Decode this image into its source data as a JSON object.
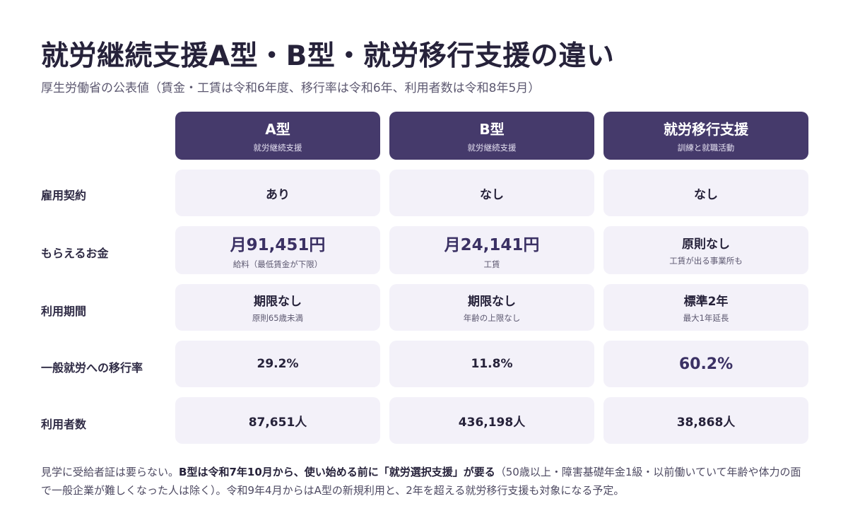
{
  "title": "就労継続支援A型・B型・就労移行支援の違い",
  "subtitle": "厚生労働省の公表値（賃金・工賃は令和6年度、移行率は令和6年、利用者数は令和8年5月）",
  "columns": [
    {
      "title": "A型",
      "sub": "就労継続支援"
    },
    {
      "title": "B型",
      "sub": "就労継続支援"
    },
    {
      "title": "就労移行支援",
      "sub": "訓練と就職活動"
    }
  ],
  "rows": [
    {
      "label": "雇用契約",
      "cells": [
        {
          "value": "あり",
          "sub": ""
        },
        {
          "value": "なし",
          "sub": ""
        },
        {
          "value": "なし",
          "sub": ""
        }
      ]
    },
    {
      "label": "もらえるお金",
      "cells": [
        {
          "value": "月91,451円",
          "sub": "給料（最低賃金が下限）"
        },
        {
          "value": "月24,141円",
          "sub": "工賃"
        },
        {
          "value": "原則なし",
          "sub": "工賃が出る事業所も"
        }
      ]
    },
    {
      "label": "利用期間",
      "cells": [
        {
          "value": "期限なし",
          "sub": "原則65歳未満"
        },
        {
          "value": "期限なし",
          "sub": "年齢の上限なし"
        },
        {
          "value": "標準2年",
          "sub": "最大1年延長"
        }
      ]
    },
    {
      "label": "一般就労への移行率",
      "cells": [
        {
          "value": "29.2%",
          "sub": ""
        },
        {
          "value": "11.8%",
          "sub": ""
        },
        {
          "value": "60.2%",
          "sub": ""
        }
      ]
    },
    {
      "label": "利用者数",
      "cells": [
        {
          "value": "87,651人",
          "sub": ""
        },
        {
          "value": "436,198人",
          "sub": ""
        },
        {
          "value": "38,868人",
          "sub": ""
        }
      ]
    }
  ],
  "footer": {
    "part1": "見学に受給者証は要らない。",
    "part2": "B型は令和7年10月から、使い始める前に「就労選択支援」が要る",
    "part3": "（50歳以上・障害基礎年金1級・以前働いていて年齢や体力の面で一般企業が難しくなった人は除く）。令和9年4月からはA型の新規利用と、2年を超える就労移行支援も対象になる予定。"
  }
}
